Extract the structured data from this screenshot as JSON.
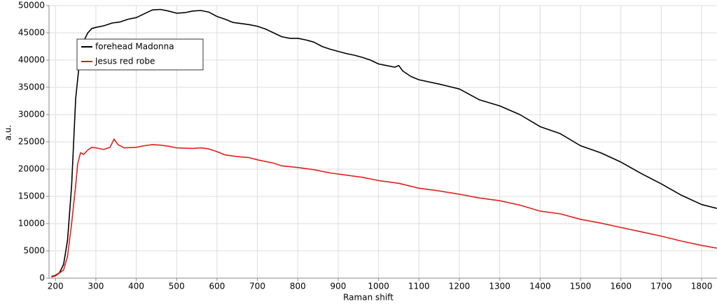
{
  "chart_data": {
    "type": "line",
    "xlabel": "Raman shift",
    "ylabel": "a.u.",
    "xlim": [
      184,
      1838
    ],
    "ylim": [
      0,
      50000
    ],
    "xticks": [
      200,
      300,
      400,
      500,
      600,
      700,
      800,
      900,
      1000,
      1100,
      1200,
      1300,
      1400,
      1500,
      1600,
      1700,
      1800
    ],
    "yticks": [
      0,
      5000,
      10000,
      15000,
      20000,
      25000,
      30000,
      35000,
      40000,
      45000,
      50000
    ],
    "grid": true,
    "legend": "upper left",
    "series": [
      {
        "name": "forehead Madonna",
        "color": "#000000",
        "x": [
          190,
          200,
          210,
          220,
          230,
          240,
          250,
          260,
          270,
          280,
          290,
          300,
          320,
          340,
          360,
          380,
          400,
          420,
          440,
          460,
          480,
          500,
          520,
          540,
          560,
          580,
          600,
          620,
          640,
          660,
          680,
          700,
          720,
          740,
          760,
          780,
          800,
          820,
          840,
          860,
          880,
          900,
          920,
          940,
          960,
          980,
          1000,
          1020,
          1040,
          1050,
          1060,
          1080,
          1100,
          1150,
          1200,
          1250,
          1300,
          1350,
          1400,
          1450,
          1500,
          1550,
          1600,
          1650,
          1700,
          1750,
          1800,
          1838
        ],
        "values": [
          300,
          500,
          1000,
          2500,
          7000,
          17000,
          33000,
          40000,
          43500,
          45000,
          45800,
          46000,
          46300,
          46800,
          47000,
          47500,
          47800,
          48500,
          49200,
          49300,
          49000,
          48600,
          48700,
          49000,
          49100,
          48800,
          48000,
          47500,
          46900,
          46700,
          46500,
          46200,
          45700,
          45000,
          44300,
          44000,
          44000,
          43700,
          43300,
          42500,
          42000,
          41600,
          41200,
          40900,
          40500,
          40000,
          39300,
          39000,
          38700,
          39000,
          38000,
          37000,
          36400,
          35600,
          34700,
          32700,
          31600,
          30000,
          27800,
          26500,
          24300,
          23000,
          21300,
          19200,
          17300,
          15200,
          13500,
          12800
        ]
      },
      {
        "name": "Jesus red robe",
        "color": "#e0201b",
        "x": [
          190,
          200,
          220,
          230,
          240,
          250,
          255,
          262,
          270,
          280,
          290,
          300,
          320,
          335,
          345,
          355,
          370,
          400,
          420,
          440,
          460,
          480,
          500,
          540,
          560,
          580,
          600,
          620,
          650,
          680,
          700,
          740,
          760,
          800,
          840,
          880,
          920,
          960,
          1000,
          1050,
          1100,
          1150,
          1200,
          1250,
          1300,
          1350,
          1400,
          1450,
          1500,
          1550,
          1600,
          1650,
          1700,
          1750,
          1800,
          1838
        ],
        "values": [
          200,
          400,
          1500,
          4000,
          10000,
          17000,
          21000,
          23000,
          22700,
          23500,
          24000,
          23900,
          23600,
          24000,
          25500,
          24500,
          23900,
          24000,
          24300,
          24500,
          24400,
          24200,
          23900,
          23800,
          23900,
          23700,
          23200,
          22600,
          22300,
          22100,
          21700,
          21100,
          20600,
          20300,
          19900,
          19300,
          18900,
          18500,
          17900,
          17400,
          16500,
          16000,
          15400,
          14700,
          14200,
          13400,
          12300,
          11800,
          10800,
          10100,
          9300,
          8500,
          7700,
          6800,
          6000,
          5500
        ]
      }
    ]
  }
}
